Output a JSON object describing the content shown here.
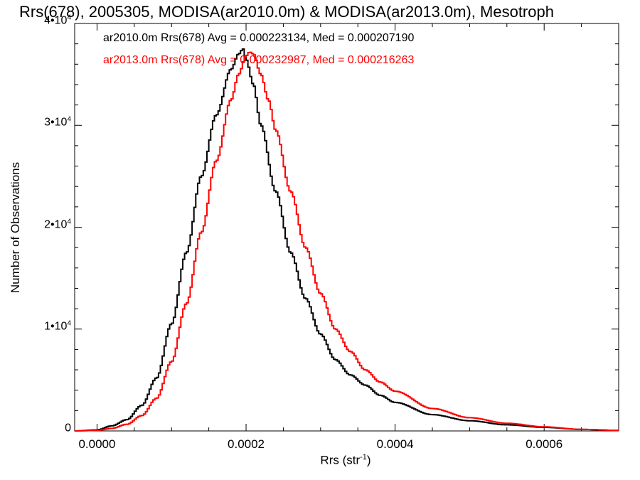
{
  "chart_data": {
    "type": "histogram",
    "title": "Rrs(678), 2005305, MODISA(ar2010.0m) & MODISA(ar2013.0m), Mesotroph",
    "xlabel": "Rrs (str",
    "xlabel_sup": "-1",
    "xlabel_tail": ")",
    "ylabel": "Number of Observations",
    "xlim": [
      -3e-05,
      0.0007
    ],
    "ylim": [
      0,
      40000
    ],
    "x_ticks": [
      {
        "value": 0.0,
        "label": "0.0000"
      },
      {
        "value": 0.0002,
        "label": "0.0002"
      },
      {
        "value": 0.0004,
        "label": "0.0004"
      },
      {
        "value": 0.0006,
        "label": "0.0006"
      }
    ],
    "y_ticks": [
      {
        "value": 0,
        "base": "0",
        "exp": ""
      },
      {
        "value": 10000,
        "base": "1•10",
        "exp": "4"
      },
      {
        "value": 20000,
        "base": "2•10",
        "exp": "4"
      },
      {
        "value": 30000,
        "base": "3•10",
        "exp": "4"
      },
      {
        "value": 40000,
        "base": "4•10",
        "exp": "4"
      }
    ],
    "grid": false,
    "legend_position": "top-left",
    "series": [
      {
        "name": "ar2010.0m Rrs(678) Avg = 0.000223134, Med = 0.000207190",
        "color": "#000000",
        "x": [
          -3e-05,
          0.0,
          2e-05,
          4e-05,
          6e-05,
          8e-05,
          0.0001,
          0.00012,
          0.00014,
          0.00016,
          0.00018,
          0.00019,
          0.000196,
          0.0002,
          0.00021,
          0.00022,
          0.00024,
          0.00026,
          0.00028,
          0.0003,
          0.00032,
          0.00034,
          0.00036,
          0.00038,
          0.0004,
          0.00045,
          0.0005,
          0.00055,
          0.0006,
          0.00065,
          0.0007
        ],
        "y": [
          0,
          100,
          500,
          1100,
          2500,
          5200,
          10500,
          17500,
          25000,
          31000,
          35500,
          37000,
          37500,
          36500,
          34000,
          30000,
          23500,
          17500,
          13000,
          9500,
          7000,
          5500,
          4500,
          3500,
          2800,
          1600,
          1000,
          600,
          350,
          150,
          50
        ]
      },
      {
        "name": "ar2013.0m Rrs(678) Avg = 0.000232987, Med = 0.000216263",
        "color": "#ff0000",
        "x": [
          -3e-05,
          0.0,
          2e-05,
          4e-05,
          6e-05,
          8e-05,
          0.0001,
          0.00012,
          0.00014,
          0.00016,
          0.00018,
          0.00019,
          0.0002,
          0.000205,
          0.00021,
          0.00022,
          0.00023,
          0.00024,
          0.00026,
          0.00028,
          0.0003,
          0.00032,
          0.00034,
          0.00036,
          0.00038,
          0.0004,
          0.00045,
          0.0005,
          0.00055,
          0.0006,
          0.00065,
          0.0007
        ],
        "y": [
          0,
          50,
          250,
          650,
          1500,
          3200,
          6800,
          12500,
          19500,
          26500,
          32500,
          35000,
          36800,
          37200,
          37000,
          35000,
          32500,
          29500,
          23500,
          18000,
          13500,
          10000,
          7800,
          6000,
          4800,
          3900,
          2200,
          1300,
          750,
          400,
          150,
          50
        ]
      }
    ]
  }
}
